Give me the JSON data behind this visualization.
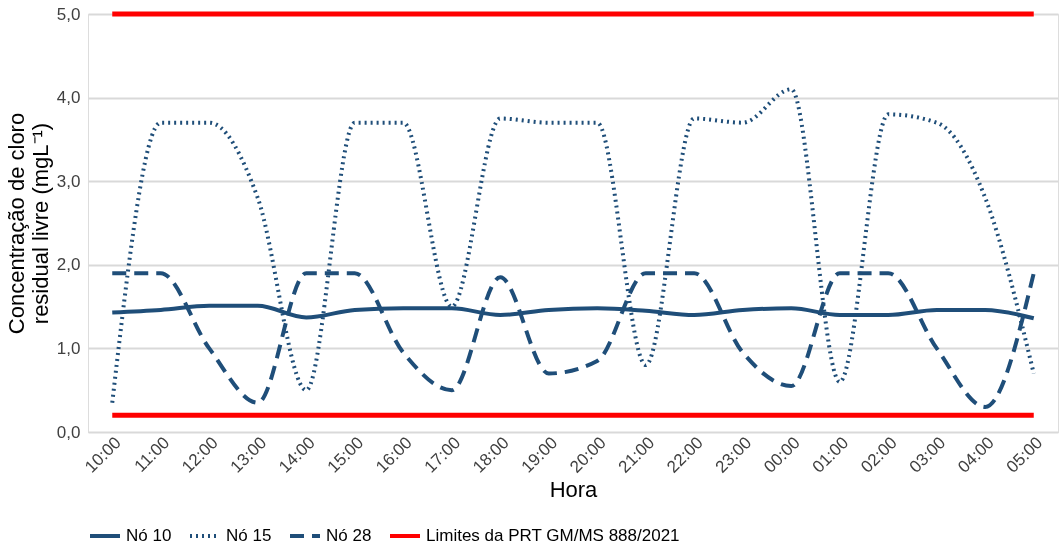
{
  "chart_data": {
    "type": "line",
    "xlabel": "Hora",
    "ylabel": "Concentração de cloro residual livre (mgL⁻¹)",
    "categories": [
      "10:00",
      "11:00",
      "12:00",
      "13:00",
      "14:00",
      "15:00",
      "16:00",
      "17:00",
      "18:00",
      "19:00",
      "20:00",
      "21:00",
      "22:00",
      "23:00",
      "00:00",
      "01:00",
      "02:00",
      "03:00",
      "04:00",
      "05:00"
    ],
    "series": [
      {
        "name": "Nó 10",
        "color": "#1f4e79",
        "line_style": "solid",
        "values": [
          1.43,
          1.46,
          1.51,
          1.51,
          1.37,
          1.46,
          1.48,
          1.48,
          1.4,
          1.46,
          1.48,
          1.45,
          1.4,
          1.46,
          1.48,
          1.4,
          1.4,
          1.46,
          1.46,
          1.36
        ]
      },
      {
        "name": "Nó 15",
        "color": "#1f4e79",
        "line_style": "dotted",
        "values": [
          0.35,
          3.7,
          3.7,
          2.8,
          0.5,
          3.7,
          3.7,
          1.5,
          3.75,
          3.7,
          3.7,
          0.8,
          3.75,
          3.7,
          4.1,
          0.6,
          3.8,
          3.7,
          2.8,
          0.7
        ]
      },
      {
        "name": "Nó 28",
        "color": "#1f4e79",
        "line_style": "dashed",
        "values": [
          1.9,
          1.9,
          1.0,
          0.35,
          1.9,
          1.9,
          0.95,
          0.5,
          1.85,
          0.7,
          0.85,
          1.9,
          1.9,
          0.95,
          0.55,
          1.9,
          1.9,
          1.0,
          0.3,
          1.9
        ]
      }
    ],
    "ref_lines": [
      {
        "axis": "y",
        "value": 5.0,
        "label": "Limites da PRT GM/MS 888/2021",
        "color": "#ff0000"
      },
      {
        "axis": "y",
        "value": 0.2,
        "color": "#ff0000"
      }
    ],
    "ylim": [
      0,
      5
    ],
    "yticks": [
      {
        "value": 0,
        "label": "0,0"
      },
      {
        "value": 1,
        "label": "1,0"
      },
      {
        "value": 2,
        "label": "2,0"
      },
      {
        "value": 3,
        "label": "3,0"
      },
      {
        "value": 4,
        "label": "4,0"
      },
      {
        "value": 5,
        "label": "5,0"
      }
    ],
    "grid": "y",
    "legend": "bottom",
    "marker": "none"
  }
}
